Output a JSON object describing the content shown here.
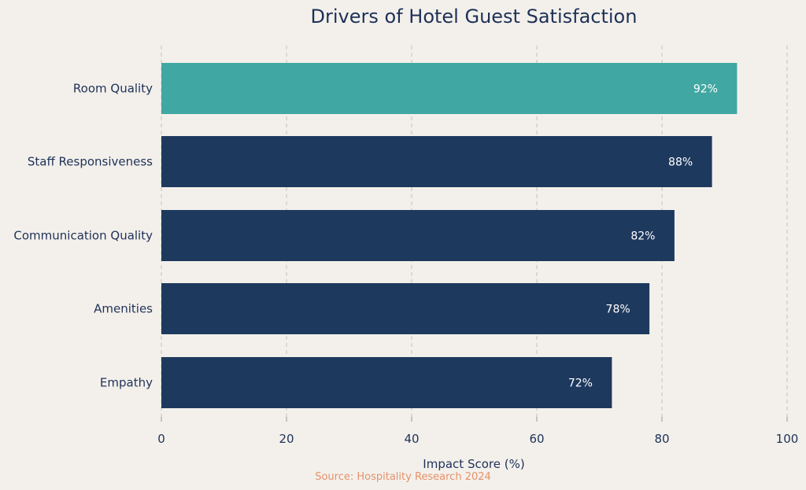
{
  "chart_data": {
    "type": "bar",
    "orientation": "horizontal",
    "title": "Drivers of Hotel Guest Satisfaction",
    "categories": [
      "Room Quality",
      "Staff Responsiveness",
      "Communication Quality",
      "Amenities",
      "Empathy"
    ],
    "values": [
      92,
      88,
      82,
      78,
      72
    ],
    "data_labels": [
      "92%",
      "88%",
      "82%",
      "78%",
      "72%"
    ],
    "xlabel": "Impact Score (%)",
    "ylabel": "",
    "xlim": [
      0,
      100
    ],
    "xticks": [
      0,
      20,
      40,
      60,
      80,
      100
    ],
    "xtick_labels": [
      "0",
      "20",
      "40",
      "60",
      "80",
      "100"
    ],
    "grid": "vertical dashed",
    "source": "Source: Hospitality Research 2024",
    "colors": {
      "highlight": "#40a7a2",
      "default": "#1e395e",
      "source": "#e8906a",
      "text": "#1e3158",
      "grid": "#c4c0ba"
    }
  }
}
